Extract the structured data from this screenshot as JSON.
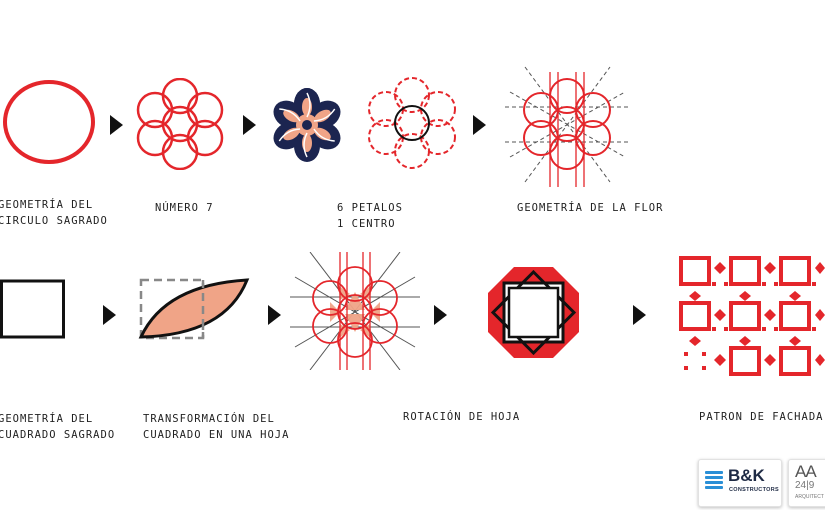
{
  "row1": {
    "captions": {
      "circle": [
        "GEOMETRÍA DEL",
        "CIRCULO SAGRADO"
      ],
      "number": [
        "NÚMERO 7"
      ],
      "petals": [
        "6 PETALOS",
        "1 CENTRO"
      ],
      "flower": [
        "GEOMETRÍA DE LA FLOR"
      ]
    }
  },
  "row2": {
    "captions": {
      "square": [
        "GEOMETRÍA DEL",
        "CUADRADO SAGRADO"
      ],
      "transform": [
        "TRANSFORMACIÓN DEL",
        "CUADRADO EN UNA HOJA"
      ],
      "rotation": [
        "ROTACIÓN DE HOJA"
      ],
      "facade": [
        "PATRON DE FACHADA"
      ]
    }
  },
  "logos": {
    "bk_name": "B&K",
    "bk_sub": "CONSTRUCTORS",
    "aa_mark": "AA",
    "aa_num": "24|9",
    "aa_sub": "ARQUITECT"
  },
  "colors": {
    "red": "#e4262b",
    "navy": "#1c2550",
    "peach": "#f0a487",
    "black": "#111111",
    "gray": "#888888"
  }
}
